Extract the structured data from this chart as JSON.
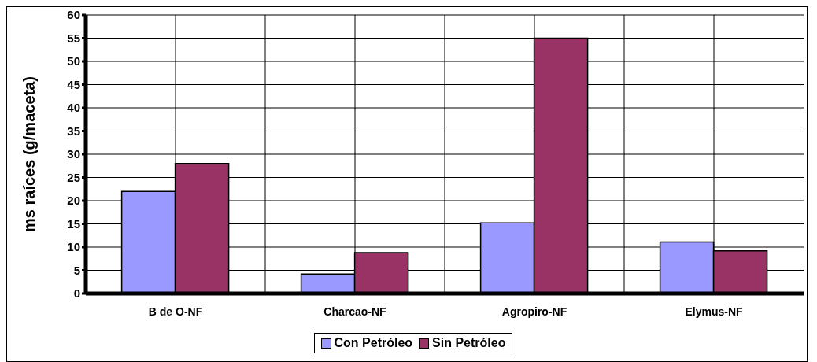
{
  "chart_data": {
    "type": "bar",
    "ylabel": "ms raíces (g/maceta)",
    "categories": [
      "B de O-NF",
      "Charcao-NF",
      "Agropiro-NF",
      "Elymus-NF"
    ],
    "series": [
      {
        "name": "Con Petróleo",
        "color": "#9999ff",
        "values": [
          22,
          4.2,
          15.2,
          11.1
        ]
      },
      {
        "name": "Sin Petróleo",
        "color": "#993366",
        "values": [
          28,
          8.8,
          55,
          9.2
        ]
      }
    ],
    "ylim": [
      0,
      60
    ],
    "yticks": [
      0,
      5,
      10,
      15,
      20,
      25,
      30,
      35,
      40,
      45,
      50,
      55,
      60
    ],
    "grid": true,
    "legend": "bottom"
  }
}
